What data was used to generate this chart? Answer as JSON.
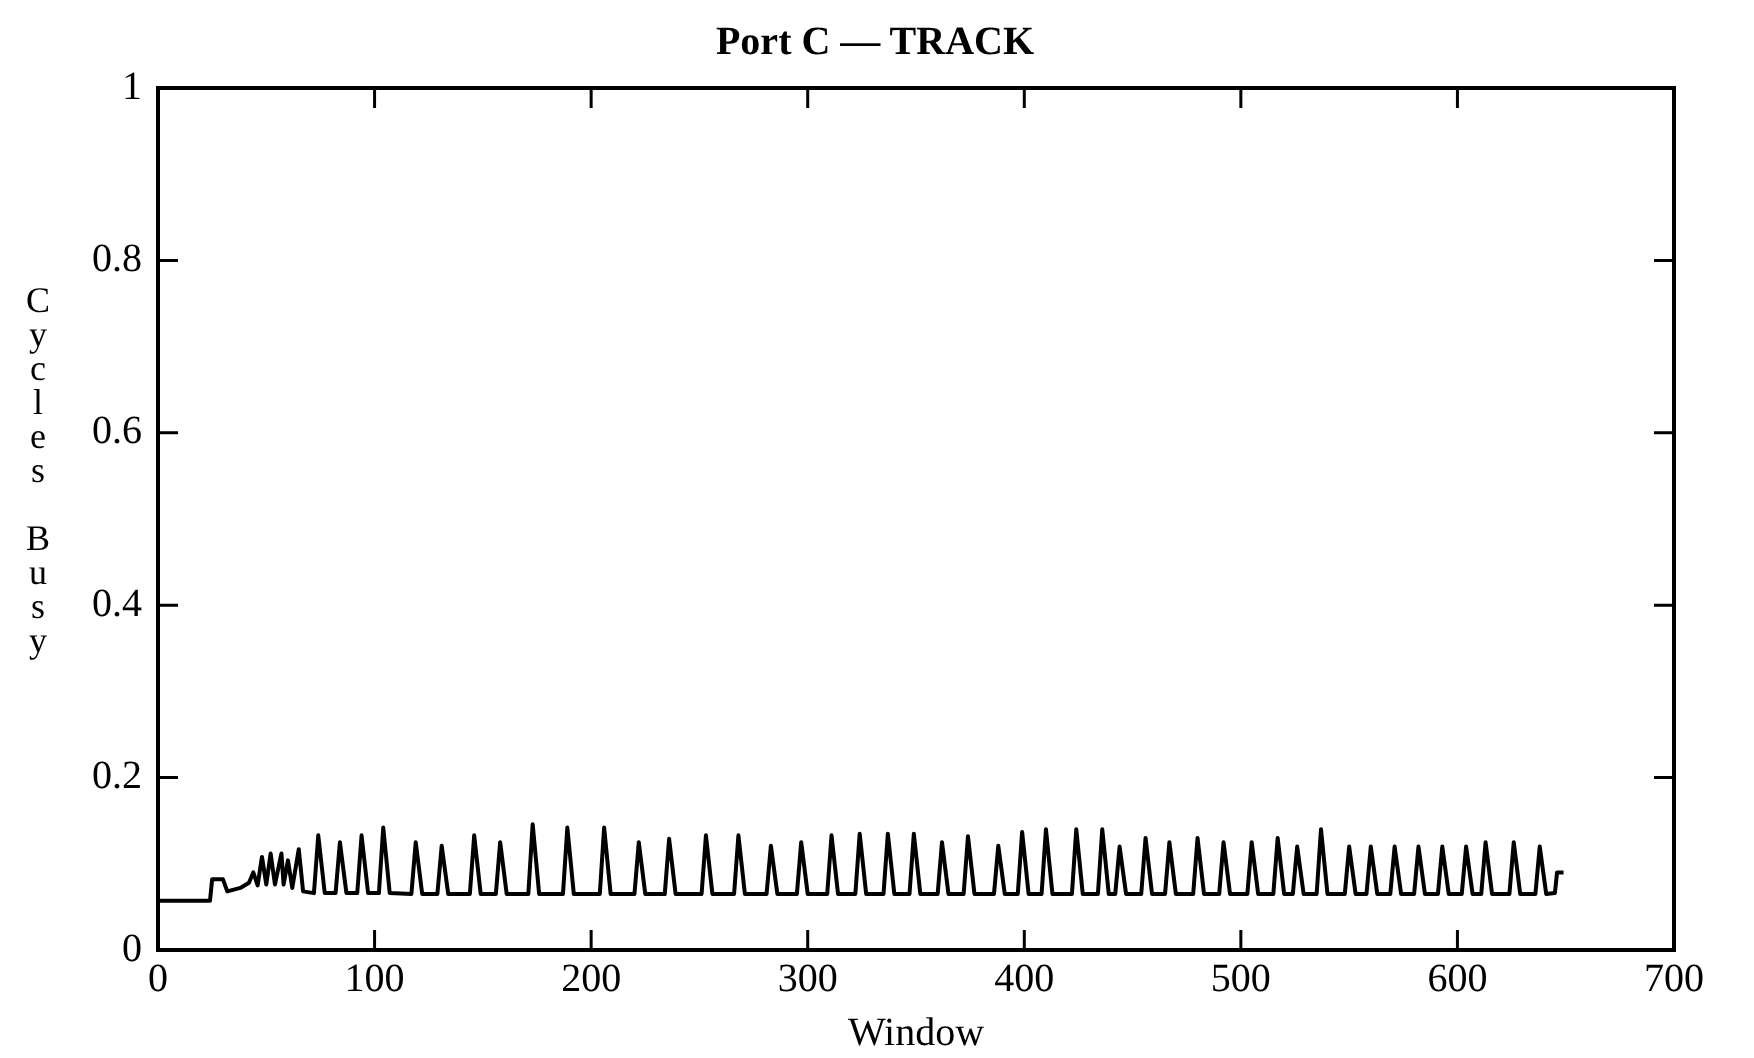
{
  "chart_data": {
    "type": "line",
    "title": "Port C — TRACK",
    "xlabel": "Window",
    "ylabel": "Cycles Busy",
    "xlim": [
      0,
      700
    ],
    "xticks": [
      0,
      100,
      200,
      300,
      400,
      500,
      600,
      700
    ],
    "ylim": [
      0,
      1
    ],
    "yticks": [
      0,
      0.2,
      0.4,
      0.6,
      0.8,
      1
    ],
    "grid": false,
    "legend": false,
    "marker": "none",
    "line_style": "solid",
    "series": [
      {
        "color": "#000000",
        "x": [
          0,
          24,
          25,
          30,
          32,
          38,
          42,
          44,
          46,
          48,
          50,
          52,
          54,
          57,
          58,
          60,
          62,
          65,
          67,
          72,
          74,
          77,
          82,
          84,
          87,
          92,
          94,
          97,
          102,
          104,
          107,
          117,
          119,
          122,
          129,
          131,
          134,
          144,
          146,
          149,
          156,
          158,
          161,
          171,
          173,
          176,
          187,
          189,
          192,
          204,
          206,
          209,
          220,
          222,
          225,
          234,
          236,
          239,
          251,
          253,
          256,
          266,
          268,
          271,
          281,
          283,
          286,
          295,
          297,
          300,
          309,
          311,
          314,
          322,
          324,
          327,
          335,
          337,
          340,
          347,
          349,
          352,
          360,
          362,
          365,
          372,
          374,
          377,
          386,
          388,
          391,
          397,
          399,
          402,
          408,
          410,
          413,
          422,
          424,
          427,
          434,
          436,
          439,
          442,
          444,
          447,
          454,
          456,
          459,
          465,
          467,
          470,
          478,
          480,
          483,
          490,
          492,
          495,
          503,
          505,
          508,
          515,
          517,
          520,
          524,
          526,
          529,
          535,
          537,
          540,
          548,
          550,
          553,
          558,
          560,
          563,
          569,
          571,
          574,
          580,
          582,
          585,
          591,
          593,
          596,
          602,
          604,
          607,
          611,
          613,
          616,
          624,
          626,
          629,
          636,
          638,
          641,
          645,
          646,
          649
        ],
        "values": [
          0.057,
          0.057,
          0.082,
          0.082,
          0.068,
          0.072,
          0.078,
          0.09,
          0.075,
          0.108,
          0.076,
          0.112,
          0.076,
          0.112,
          0.076,
          0.104,
          0.072,
          0.117,
          0.068,
          0.066,
          0.133,
          0.066,
          0.066,
          0.125,
          0.066,
          0.066,
          0.133,
          0.066,
          0.066,
          0.142,
          0.066,
          0.065,
          0.125,
          0.065,
          0.065,
          0.121,
          0.065,
          0.065,
          0.133,
          0.065,
          0.065,
          0.125,
          0.065,
          0.065,
          0.146,
          0.065,
          0.065,
          0.142,
          0.065,
          0.065,
          0.142,
          0.065,
          0.065,
          0.125,
          0.065,
          0.065,
          0.129,
          0.065,
          0.065,
          0.133,
          0.065,
          0.065,
          0.133,
          0.065,
          0.065,
          0.121,
          0.065,
          0.065,
          0.125,
          0.065,
          0.065,
          0.133,
          0.065,
          0.065,
          0.135,
          0.065,
          0.065,
          0.135,
          0.065,
          0.065,
          0.135,
          0.065,
          0.065,
          0.125,
          0.065,
          0.065,
          0.132,
          0.065,
          0.065,
          0.121,
          0.065,
          0.065,
          0.137,
          0.065,
          0.065,
          0.14,
          0.065,
          0.065,
          0.14,
          0.065,
          0.065,
          0.14,
          0.065,
          0.065,
          0.12,
          0.065,
          0.065,
          0.13,
          0.065,
          0.065,
          0.125,
          0.065,
          0.065,
          0.13,
          0.065,
          0.065,
          0.125,
          0.065,
          0.065,
          0.125,
          0.065,
          0.065,
          0.13,
          0.065,
          0.065,
          0.12,
          0.065,
          0.065,
          0.14,
          0.065,
          0.065,
          0.12,
          0.065,
          0.065,
          0.12,
          0.065,
          0.065,
          0.12,
          0.065,
          0.065,
          0.12,
          0.065,
          0.065,
          0.12,
          0.065,
          0.065,
          0.12,
          0.065,
          0.065,
          0.125,
          0.065,
          0.065,
          0.125,
          0.065,
          0.065,
          0.12,
          0.065,
          0.066,
          0.09,
          0.09
        ]
      }
    ]
  }
}
